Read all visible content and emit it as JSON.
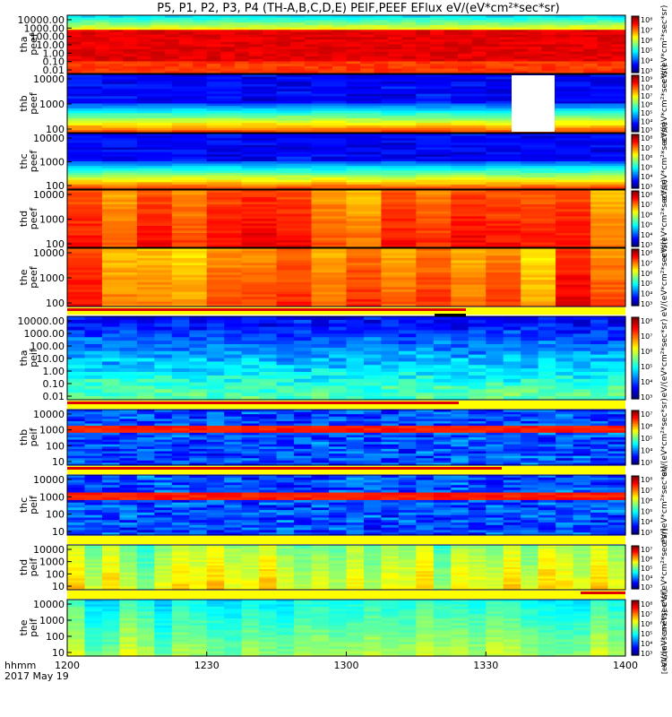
{
  "chart_data": {
    "type": "heatmap",
    "title": "P5, P1, P2, P3, P4 (TH-A,B,C,D,E) PEIF,PEEF EFlux eV/(eV*cm²*sec*sr)",
    "x_ticks": [
      "1200",
      "1230",
      "1300",
      "1330",
      "1400"
    ],
    "x_label_lines": [
      "hhmm",
      "2017 May 19"
    ],
    "colorbar_label": "[eV/(cm²-s-sr-eV)]",
    "panels": [
      {
        "id": "tha_peef",
        "label1": "tha",
        "label2": "peef",
        "yticks": [
          "10000.00",
          "1000.00",
          "100.00",
          "10.00",
          "1.00",
          "0.10",
          "0.01"
        ],
        "cbticks": [
          "10⁸",
          "10⁷",
          "10⁶",
          "10⁵",
          "10⁴",
          "10³"
        ],
        "cb_label": "eV/(eV*cm²*sec*sr)"
      },
      {
        "id": "thb_peef",
        "label1": "thb",
        "label2": "peef",
        "yticks": [
          "10000",
          "1000",
          "100"
        ],
        "cbticks": [
          "10⁹",
          "10⁸",
          "10⁷",
          "10⁶",
          "10⁵",
          "10⁴",
          "10³"
        ],
        "cb_label": "eV/(eV*cm²*sec*sr)"
      },
      {
        "id": "thc_peef",
        "label1": "thc",
        "label2": "peef",
        "yticks": [
          "10000",
          "1000",
          "100"
        ],
        "cbticks": [
          "10⁸",
          "10⁷",
          "10⁶",
          "10⁵",
          "10⁴",
          "10³"
        ],
        "cb_label": "eV/(eV*cm²*sec*sr)"
      },
      {
        "id": "thd_peef",
        "label1": "thd",
        "label2": "peef",
        "yticks": [
          "10000",
          "1000",
          "100"
        ],
        "cbticks": [
          "10⁸",
          "10⁷",
          "10⁶",
          "10⁵",
          "10⁴",
          "10³"
        ],
        "cb_label": "eV/(eV*cm²*sec*sr)"
      },
      {
        "id": "the_peef",
        "label1": "the",
        "label2": "peef",
        "yticks": [
          "10000",
          "1000",
          "100"
        ],
        "cbticks": [
          "10⁸",
          "10⁷",
          "10⁶",
          "10⁵",
          "10⁴",
          "10³"
        ],
        "cb_label": "eV/(eV*cm²*sec*sr)"
      },
      {
        "id": "tha_peif",
        "label1": "tha",
        "label2": "peif",
        "yticks": [
          "10000.00",
          "1000.00",
          "100.00",
          "10.00",
          "1.00",
          "0.10",
          "0.01"
        ],
        "cbticks": [
          "10⁸",
          "10⁷",
          "10⁶",
          "10⁵",
          "10⁴",
          "10³"
        ],
        "cb_label": "eV/(eV*cm²*sec*sr)"
      },
      {
        "id": "thb_peif",
        "label1": "thb",
        "label2": "peif",
        "yticks": [
          "10000",
          "1000",
          "100",
          "10"
        ],
        "cbticks": [
          "10⁷",
          "10⁶",
          "10⁵",
          "10⁴",
          "10³"
        ],
        "cb_label": "eV/(eV*cm²*sec*sr)"
      },
      {
        "id": "thc_peif",
        "label1": "thc",
        "label2": "peif",
        "yticks": [
          "10000",
          "1000",
          "100",
          "10"
        ],
        "cbticks": [
          "10⁸",
          "10⁷",
          "10⁶",
          "10⁵",
          "10⁴",
          "10³"
        ],
        "cb_label": "eV/(eV*cm²*sec*sr)"
      },
      {
        "id": "thd_peif",
        "label1": "thd",
        "label2": "peif",
        "yticks": [
          "10000",
          "1000",
          "100",
          "10"
        ],
        "cbticks": [
          "10⁷",
          "10⁶",
          "10⁵",
          "10⁴",
          "10³"
        ],
        "cb_label": "eV/(eV*cm²*sec*sr)"
      },
      {
        "id": "the_peif",
        "label1": "the",
        "label2": "peif",
        "yticks": [
          "10000",
          "1000",
          "100",
          "10"
        ],
        "cbticks": [
          "10⁸",
          "10⁷",
          "10⁶",
          "10⁵",
          "10⁴",
          "10³"
        ],
        "cb_label": "eV/(eV*cm²*sec*sr)"
      }
    ]
  }
}
